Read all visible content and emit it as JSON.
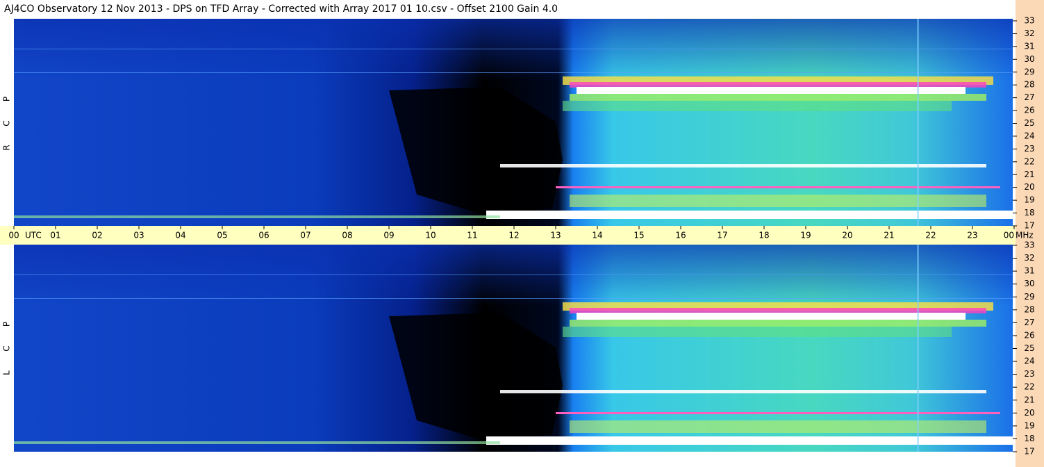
{
  "title": "AJ4CO Observatory  12 Nov 2013  -  DPS on TFD Array  -  Corrected with Array 2017 01 10.csv  -  Offset 2100  Gain 4.0",
  "time_axis": {
    "hours": [
      "00",
      "01",
      "02",
      "03",
      "04",
      "05",
      "06",
      "07",
      "08",
      "09",
      "10",
      "11",
      "12",
      "13",
      "14",
      "15",
      "16",
      "17",
      "18",
      "19",
      "20",
      "21",
      "22",
      "23",
      "00"
    ],
    "zone": "UTC",
    "unit": "MHz"
  },
  "panels": [
    {
      "letters": [
        "R",
        "C",
        "P"
      ],
      "yticks": [
        17,
        18,
        19,
        20,
        21,
        22,
        23,
        24,
        25,
        26,
        27,
        28,
        29,
        30,
        31,
        32,
        33
      ]
    },
    {
      "letters": [
        "L",
        "C",
        "P"
      ],
      "yticks": [
        17,
        18,
        19,
        20,
        21,
        22,
        23,
        24,
        25,
        26,
        27,
        28,
        29,
        30,
        31,
        32,
        33
      ]
    }
  ]
}
